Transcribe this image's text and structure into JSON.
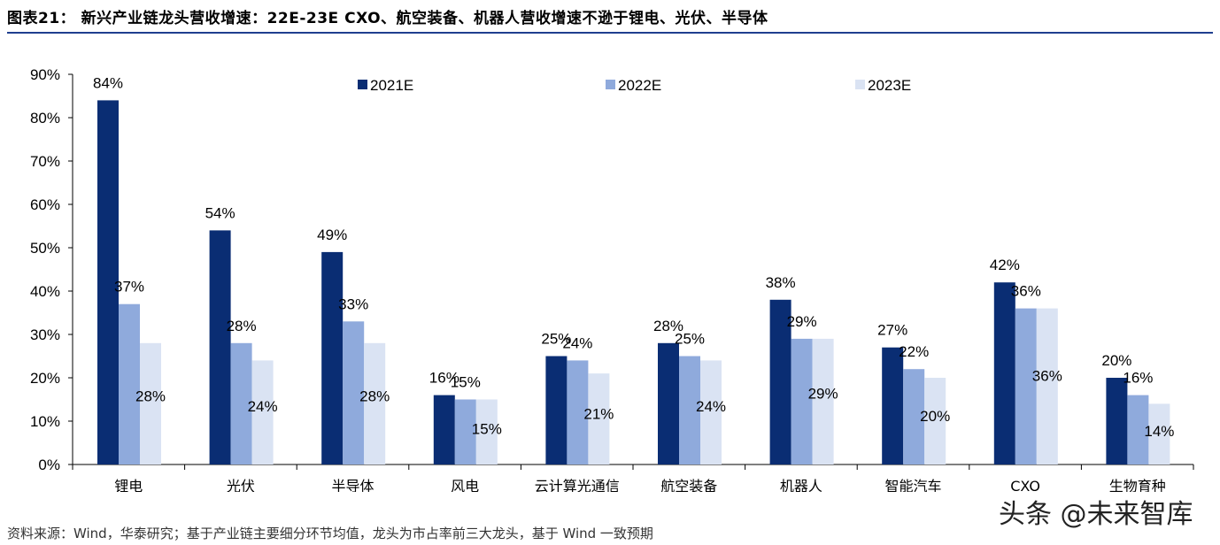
{
  "title": "图表21：  新兴产业链龙头营收增速：22E-23E CXO、航空装备、机器人营收增速不逊于锂电、光伏、半导体",
  "source": "资料来源：Wind，华泰研究；基于产业链主要细分环节均值，龙头为市占率前三大龙头，基于 Wind 一致预期",
  "watermark": "头条 @未来智库",
  "colors": {
    "series": [
      "#0a2d73",
      "#8faadc",
      "#dae3f3"
    ],
    "title_rule": "#1f3f8f"
  },
  "chart_data": {
    "type": "bar",
    "categories": [
      "锂电",
      "光伏",
      "半导体",
      "风电",
      "云计算光通信",
      "航空装备",
      "机器人",
      "智能汽车",
      "CXO",
      "生物育种"
    ],
    "series": [
      {
        "name": "2021E",
        "values": [
          84,
          54,
          49,
          16,
          25,
          28,
          38,
          27,
          42,
          20
        ],
        "labels": [
          "84%",
          "54%",
          "49%",
          "16%",
          "25%",
          "28%",
          "38%",
          "27%",
          "42%",
          "20%"
        ]
      },
      {
        "name": "2022E",
        "values": [
          37,
          28,
          33,
          15,
          24,
          25,
          29,
          22,
          36,
          16
        ],
        "labels": [
          "37%",
          "28%",
          "33%",
          "15%",
          "24%",
          "25%",
          "29%",
          "22%",
          "36%",
          "16%"
        ]
      },
      {
        "name": "2023E",
        "values": [
          28,
          24,
          28,
          15,
          21,
          24,
          29,
          20,
          36,
          14
        ],
        "labels": [
          "28%",
          "24%",
          "28%",
          "15%",
          "21%",
          "24%",
          "29%",
          "20%",
          "36%",
          "14%"
        ]
      }
    ],
    "ylim": [
      0,
      90
    ],
    "yticks": [
      "0%",
      "10%",
      "20%",
      "30%",
      "40%",
      "50%",
      "60%",
      "70%",
      "80%",
      "90%"
    ],
    "xlabel": "",
    "ylabel": "",
    "grid": false,
    "legend": "top"
  }
}
